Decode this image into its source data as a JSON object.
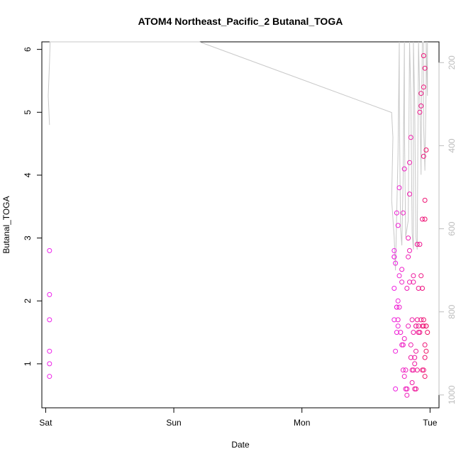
{
  "chart_data": {
    "type": "scatter",
    "title": "ATOM4 Northeast_Pacific_2 Butanal_TOGA",
    "xlabel": "Date",
    "ylabel": "Butanal_TOGA",
    "x_axis": {
      "unit": "days",
      "range": [
        -0.03,
        3.07
      ],
      "ticks": [
        {
          "value": 0,
          "label": "Sat"
        },
        {
          "value": 1,
          "label": "Sun"
        },
        {
          "value": 2,
          "label": "Mon"
        },
        {
          "value": 3,
          "label": "Tue"
        }
      ]
    },
    "y_axis": {
      "range": [
        0.3,
        6.12
      ],
      "ticks": [
        1,
        2,
        3,
        4,
        5,
        6
      ]
    },
    "y2_axis": {
      "range": [
        1031,
        150
      ],
      "ticks": [
        200,
        400,
        600,
        800,
        1000
      ],
      "reversed": true,
      "color": "#bdbdbd"
    },
    "point_color_start": "#ee22ee",
    "point_color_end": "#ee1166",
    "line_color": "#c8c8c8",
    "grid": false,
    "legend": "none",
    "series": [
      {
        "kind": "points",
        "x": [
          0.03,
          0.03,
          0.03,
          0.03,
          0.03,
          0.03,
          2.72,
          2.72,
          2.73,
          2.72,
          2.72,
          2.73,
          2.74,
          2.72,
          2.73,
          2.74,
          2.75,
          2.74,
          2.75,
          2.74,
          2.75,
          2.76,
          2.76,
          2.76,
          2.77,
          2.75,
          2.78,
          2.78,
          2.79,
          2.78,
          2.79,
          2.8,
          2.79,
          2.8,
          2.81,
          2.8,
          2.81,
          2.82,
          2.82,
          2.83,
          2.82,
          2.83,
          2.84,
          2.83,
          2.84,
          2.84,
          2.85,
          2.84,
          2.85,
          2.86,
          2.86,
          2.85,
          2.87,
          2.86,
          2.87,
          2.88,
          2.87,
          2.88,
          2.87,
          2.89,
          2.88,
          2.89,
          2.89,
          2.9,
          2.89,
          2.9,
          2.91,
          2.9,
          2.91,
          2.92,
          2.91,
          2.92,
          2.93,
          2.92,
          2.93,
          2.94,
          2.93,
          2.94,
          2.93,
          2.94,
          2.95,
          2.94,
          2.95,
          2.95,
          2.96,
          2.95,
          2.96,
          2.95,
          2.96,
          2.97,
          2.96,
          2.95,
          2.96,
          2.97,
          2.96,
          2.97,
          2.98,
          2.97
        ],
        "y": [
          2.8,
          2.1,
          1.7,
          1.2,
          1.0,
          0.8,
          2.7,
          2.8,
          2.6,
          2.2,
          1.7,
          0.6,
          1.9,
          2.7,
          1.2,
          1.5,
          2.0,
          1.9,
          1.6,
          3.4,
          3.2,
          3.8,
          2.4,
          1.9,
          1.5,
          1.7,
          2.5,
          1.3,
          0.9,
          2.3,
          3.4,
          4.1,
          1.3,
          1.4,
          0.6,
          0.8,
          0.9,
          0.5,
          0.6,
          1.6,
          2.2,
          3.0,
          2.8,
          2.7,
          3.7,
          2.3,
          1.3,
          4.2,
          4.6,
          1.7,
          0.9,
          1.1,
          1.5,
          0.7,
          2.3,
          1.0,
          2.4,
          1.1,
          0.9,
          1.2,
          0.6,
          1.6,
          0.6,
          2.9,
          1.6,
          0.9,
          1.5,
          1.7,
          2.2,
          2.9,
          1.6,
          5.0,
          5.1,
          1.5,
          1.7,
          3.3,
          2.4,
          1.6,
          5.3,
          2.2,
          4.3,
          0.9,
          5.4,
          0.9,
          5.7,
          5.9,
          1.3,
          1.6,
          3.6,
          1.6,
          1.1,
          1.7,
          0.8,
          4.4,
          3.3,
          1.6,
          1.5,
          1.2
        ]
      },
      {
        "kind": "line",
        "axis": "y2",
        "x": [
          0.03,
          0.02,
          0.03,
          0.035,
          0.03,
          0.04,
          1.05,
          1.2,
          2.7,
          2.71,
          2.7,
          2.72,
          2.73,
          2.74,
          2.75,
          2.76,
          2.76,
          2.77,
          2.78,
          2.79,
          2.8,
          2.8,
          2.81,
          2.82,
          2.83,
          2.84,
          2.85,
          2.86,
          2.87,
          2.87,
          2.88,
          2.89,
          2.9,
          2.91,
          2.92,
          2.93,
          2.93,
          2.94,
          2.95,
          2.95,
          2.96,
          2.97,
          2.97,
          2.98,
          2.98
        ],
        "y": [
          350,
          280,
          200,
          150,
          150,
          150,
          150,
          150,
          320,
          380,
          530,
          620,
          700,
          560,
          420,
          150,
          300,
          600,
          640,
          480,
          150,
          350,
          620,
          600,
          580,
          150,
          280,
          610,
          650,
          150,
          300,
          620,
          650,
          150,
          280,
          470,
          440,
          150,
          150,
          350,
          460,
          250,
          150,
          280,
          150
        ]
      }
    ]
  }
}
